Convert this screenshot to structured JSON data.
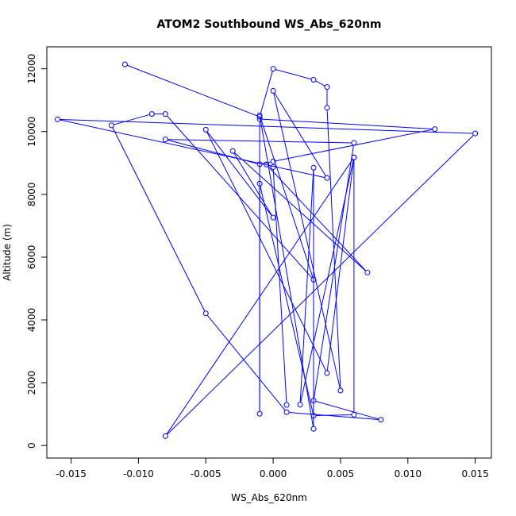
{
  "chart_data": {
    "type": "line",
    "title": "ATOM2 Southbound WS_Abs_620nm",
    "xlabel": "WS_Abs_620nm",
    "ylabel": "Altitude (m)",
    "xlim": [
      -0.0168,
      0.0162
    ],
    "ylim": [
      -400,
      12700
    ],
    "x_ticks": [
      -0.015,
      -0.01,
      -0.005,
      0.0,
      0.005,
      0.01,
      0.015
    ],
    "x_tick_labels": [
      "-0.015",
      "-0.010",
      "-0.005",
      "0.000",
      "0.005",
      "0.010",
      "0.015"
    ],
    "y_ticks": [
      0,
      2000,
      4000,
      6000,
      8000,
      10000,
      12000
    ],
    "y_tick_labels": [
      "0",
      "2000",
      "4000",
      "6000",
      "8000",
      "10000",
      "12000"
    ],
    "grid": false,
    "series": [
      {
        "color": "#0000ff",
        "marker": "open-circle",
        "points": [
          {
            "x": -0.011,
            "y": 12140
          },
          {
            "x": -0.001,
            "y": 10470
          },
          {
            "x": 0.0,
            "y": 12000
          },
          {
            "x": 0.003,
            "y": 11650
          },
          {
            "x": 0.004,
            "y": 11420
          },
          {
            "x": 0.004,
            "y": 10760
          },
          {
            "x": 0.005,
            "y": 1750
          },
          {
            "x": 0.0,
            "y": 11300
          },
          {
            "x": 0.004,
            "y": 8520
          },
          {
            "x": -0.016,
            "y": 10390
          },
          {
            "x": 0.015,
            "y": 9940
          },
          {
            "x": -0.008,
            "y": 300
          },
          {
            "x": 0.006,
            "y": 9180
          },
          {
            "x": 0.002,
            "y": 1300
          },
          {
            "x": 0.003,
            "y": 8850
          },
          {
            "x": 0.003,
            "y": 530
          },
          {
            "x": -0.001,
            "y": 10520
          },
          {
            "x": 0.003,
            "y": 5280
          },
          {
            "x": -0.008,
            "y": 10560
          },
          {
            "x": -0.009,
            "y": 10560
          },
          {
            "x": -0.012,
            "y": 10200
          },
          {
            "x": -0.005,
            "y": 4210
          },
          {
            "x": 0.001,
            "y": 1060
          },
          {
            "x": 0.008,
            "y": 820
          },
          {
            "x": 0.003,
            "y": 1430
          },
          {
            "x": 0.006,
            "y": 9640
          },
          {
            "x": -0.008,
            "y": 9750
          },
          {
            "x": -0.001,
            "y": 8960
          },
          {
            "x": 0.0,
            "y": 9050
          },
          {
            "x": 0.012,
            "y": 10080
          },
          {
            "x": -0.001,
            "y": 10400
          },
          {
            "x": -0.001,
            "y": 1010
          },
          {
            "x": -0.001,
            "y": 8340
          },
          {
            "x": 0.003,
            "y": 950
          },
          {
            "x": 0.006,
            "y": 980
          },
          {
            "x": 0.006,
            "y": 9180
          },
          {
            "x": 0.004,
            "y": 2310
          },
          {
            "x": -0.005,
            "y": 10060
          },
          {
            "x": 0.0,
            "y": 7260
          },
          {
            "x": -0.003,
            "y": 9380
          },
          {
            "x": 0.007,
            "y": 5510
          },
          {
            "x": -0.0005,
            "y": 8950
          },
          {
            "x": 0.0,
            "y": 8870
          },
          {
            "x": 0.001,
            "y": 1290
          }
        ]
      }
    ]
  }
}
